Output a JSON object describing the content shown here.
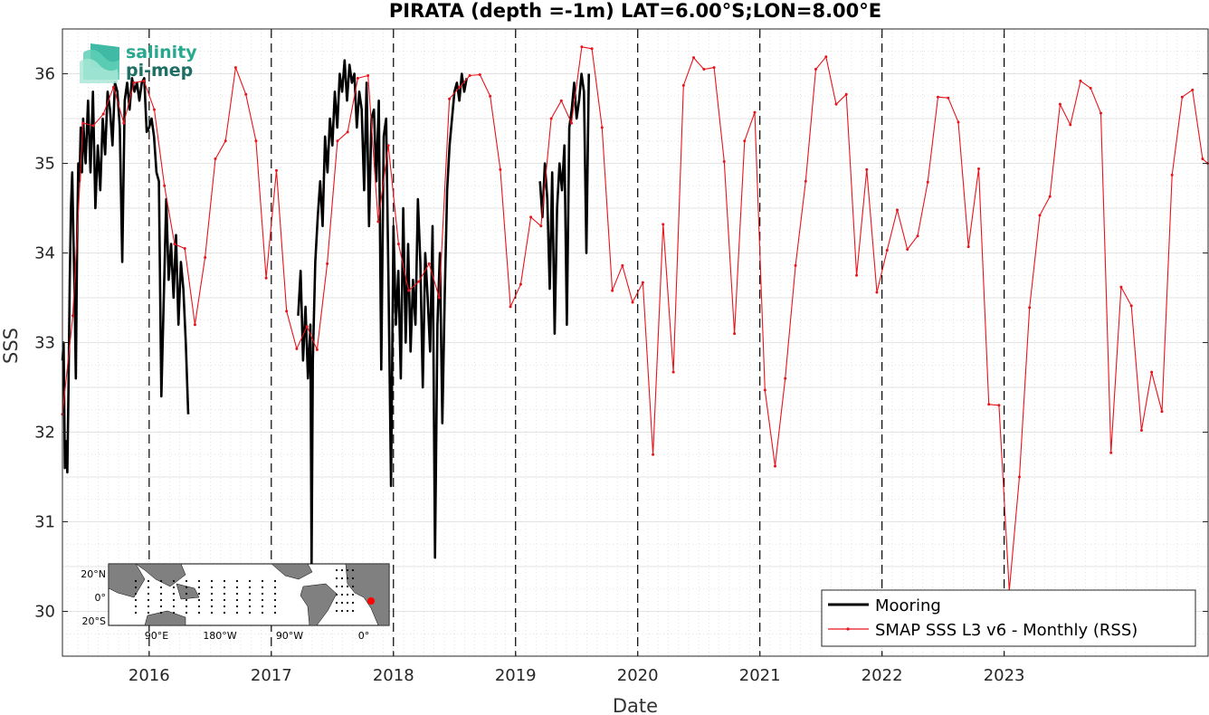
{
  "chart_data": {
    "type": "line",
    "title": "PIRATA (depth =-1m) LAT=6.00°S;LON=8.00°E",
    "xlabel": "Date",
    "ylabel": "SSS",
    "xlim": [
      2015.29,
      2024.67
    ],
    "ylim": [
      29.5,
      36.5
    ],
    "y_ticks": [
      "30",
      "31",
      "32",
      "33",
      "34",
      "35",
      "36"
    ],
    "x_ticks": [
      {
        "label": "2016",
        "x": 2016.0
      },
      {
        "label": "2017",
        "x": 2017.0
      },
      {
        "label": "2018",
        "x": 2018.0
      },
      {
        "label": "2019",
        "x": 2019.0
      },
      {
        "label": "2020",
        "x": 2020.0
      },
      {
        "label": "2021",
        "x": 2021.0
      },
      {
        "label": "2022",
        "x": 2022.0
      },
      {
        "label": "2023",
        "x": 2023.0
      }
    ],
    "year_lines": [
      2016,
      2017,
      2018,
      2019,
      2020,
      2021,
      2022,
      2023
    ],
    "grid": true,
    "legend_position": "bottom-right",
    "series": [
      {
        "name": "Mooring",
        "color": "#000000",
        "x": [
          2015.29,
          2015.3,
          2015.31,
          2015.32,
          2015.33,
          2015.34,
          2015.35,
          2015.36,
          2015.37,
          2015.38,
          2015.39,
          2015.4,
          2015.41,
          2015.42,
          2015.43,
          2015.44,
          2015.45,
          2015.46,
          2015.47,
          2015.48,
          2015.5,
          2015.52,
          2015.54,
          2015.56,
          2015.58,
          2015.6,
          2015.62,
          2015.64,
          2015.66,
          2015.68,
          2015.7,
          2015.72,
          2015.74,
          2015.76,
          2015.78,
          2015.8,
          2015.82,
          2015.84,
          2015.86,
          2015.88,
          2015.9,
          2015.92,
          2015.94,
          2015.96,
          2015.98,
          2016.0,
          2016.02,
          2016.04,
          2016.06,
          2016.08,
          2016.1,
          2016.12,
          2016.14,
          2016.16,
          2016.18,
          2016.2,
          2016.22,
          2016.24,
          2016.26,
          2016.28,
          2016.3,
          2016.32,
          null,
          2017.22,
          2017.24,
          2017.26,
          2017.28,
          2017.3,
          2017.32,
          2017.33,
          2017.34,
          2017.36,
          2017.38,
          2017.4,
          2017.42,
          2017.44,
          2017.46,
          2017.48,
          2017.5,
          2017.52,
          2017.54,
          2017.56,
          2017.58,
          2017.6,
          2017.62,
          2017.64,
          2017.66,
          2017.68,
          2017.7,
          2017.72,
          2017.74,
          2017.76,
          2017.78,
          2017.8,
          2017.82,
          2017.84,
          2017.86,
          2017.88,
          2017.9,
          2017.92,
          2017.94,
          2017.96,
          2017.98,
          2018.0,
          2018.02,
          2018.04,
          2018.06,
          2018.08,
          2018.1,
          2018.12,
          2018.14,
          2018.16,
          2018.18,
          2018.2,
          2018.22,
          2018.24,
          2018.26,
          2018.28,
          2018.3,
          2018.32,
          2018.34,
          2018.36,
          2018.38,
          2018.4,
          2018.42,
          2018.44,
          2018.46,
          2018.48,
          2018.5,
          2018.52,
          2018.54,
          2018.56,
          2018.58,
          2018.6,
          null,
          2019.2,
          2019.22,
          2019.24,
          2019.26,
          2019.28,
          2019.3,
          2019.32,
          2019.34,
          2019.36,
          2019.38,
          2019.4,
          2019.42,
          2019.44,
          2019.46,
          2019.48,
          2019.5,
          2019.52,
          2019.54,
          2019.56,
          2019.58,
          2019.6
        ],
        "y": [
          32.8,
          33.0,
          31.6,
          31.9,
          31.55,
          32.5,
          33.7,
          34.5,
          34.9,
          34.2,
          33.5,
          32.6,
          34.1,
          35.0,
          34.8,
          35.4,
          34.9,
          35.5,
          35.2,
          35.0,
          35.7,
          34.9,
          35.8,
          34.5,
          35.2,
          34.7,
          35.5,
          35.1,
          35.8,
          35.6,
          35.2,
          35.9,
          35.8,
          35.4,
          33.9,
          35.7,
          35.9,
          35.6,
          35.95,
          35.8,
          35.9,
          35.7,
          35.9,
          35.95,
          35.35,
          35.4,
          35.5,
          35.3,
          34.9,
          34.8,
          32.4,
          33.5,
          34.6,
          33.7,
          34.1,
          33.5,
          34.2,
          33.2,
          33.9,
          33.6,
          33.0,
          32.2,
          null,
          33.3,
          33.8,
          32.8,
          33.4,
          32.6,
          33.2,
          30.5,
          32.8,
          33.9,
          34.4,
          34.8,
          34.3,
          35.3,
          34.9,
          35.5,
          35.2,
          35.8,
          35.4,
          36.0,
          35.8,
          36.15,
          35.7,
          36.1,
          35.9,
          36.0,
          35.4,
          35.8,
          35.6,
          34.7,
          35.9,
          34.3,
          35.5,
          35.6,
          34.8,
          35.7,
          32.7,
          35.3,
          35.5,
          33.6,
          31.4,
          34.3,
          33.2,
          33.8,
          32.6,
          34.5,
          33.0,
          34.1,
          32.9,
          33.7,
          33.2,
          34.6,
          33.9,
          32.5,
          34.0,
          33.5,
          32.9,
          34.3,
          30.6,
          33.2,
          34.0,
          32.1,
          33.5,
          34.7,
          35.2,
          35.5,
          35.8,
          35.9,
          35.7,
          36.0,
          35.8,
          35.95,
          null,
          34.8,
          34.4,
          35.0,
          34.6,
          33.6,
          34.9,
          33.1,
          34.5,
          35.0,
          34.7,
          35.2,
          33.2,
          35.4,
          35.6,
          35.9,
          35.5,
          35.7,
          36.0,
          35.8,
          34.0,
          36.0
        ]
      },
      {
        "name": "SMAP SSS L3 v6 - Monthly (RSS)",
        "color": "#e8141c",
        "x": [
          2015.29,
          2015.375,
          2015.458,
          2015.542,
          2015.625,
          2015.708,
          2015.792,
          2015.875,
          2015.958,
          2016.042,
          2016.125,
          2016.208,
          2016.292,
          2016.375,
          2016.458,
          2016.542,
          2016.625,
          2016.708,
          2016.792,
          2016.875,
          2016.958,
          2017.042,
          2017.125,
          2017.208,
          2017.292,
          2017.375,
          2017.458,
          2017.542,
          2017.625,
          2017.708,
          2017.792,
          2017.875,
          2017.958,
          2018.042,
          2018.125,
          2018.208,
          2018.292,
          2018.375,
          2018.458,
          2018.542,
          2018.625,
          2018.708,
          2018.792,
          2018.875,
          2018.958,
          2019.042,
          2019.125,
          2019.208,
          2019.292,
          2019.375,
          2019.458,
          2019.542,
          2019.625,
          2019.708,
          2019.792,
          2019.875,
          2019.958,
          2020.042,
          2020.125,
          2020.208,
          2020.292,
          2020.375,
          2020.458,
          2020.542,
          2020.625,
          2020.708,
          2020.792,
          2020.875,
          2020.958,
          2021.042,
          2021.125,
          2021.208,
          2021.292,
          2021.375,
          2021.458,
          2021.542,
          2021.625,
          2021.708,
          2021.792,
          2021.875,
          2021.958,
          2022.042,
          2022.125,
          2022.208,
          2022.292,
          2022.375,
          2022.458,
          2022.542,
          2022.625,
          2022.708,
          2022.792,
          2022.875,
          2022.958,
          2023.042,
          2023.125,
          2023.208,
          2023.292,
          2023.375,
          2023.458,
          2023.542,
          2023.625,
          2023.708,
          2023.792,
          2023.875,
          2023.958,
          2024.042,
          2024.125,
          2024.208,
          2024.292,
          2024.375,
          2024.458,
          2024.542,
          2024.625,
          2024.667
        ],
        "y": [
          32.2,
          33.3,
          35.45,
          35.42,
          35.55,
          35.85,
          35.45,
          35.9,
          35.92,
          35.6,
          34.75,
          34.1,
          34.05,
          33.2,
          33.95,
          35.05,
          35.25,
          36.07,
          35.77,
          35.25,
          33.72,
          34.92,
          33.35,
          32.93,
          33.18,
          32.92,
          33.88,
          35.25,
          35.35,
          35.95,
          35.98,
          34.35,
          35.2,
          34.1,
          33.58,
          33.68,
          33.88,
          33.5,
          35.72,
          35.85,
          35.98,
          35.99,
          35.75,
          34.93,
          33.4,
          33.65,
          34.4,
          34.3,
          35.5,
          35.7,
          35.45,
          36.3,
          36.28,
          35.4,
          33.58,
          33.86,
          33.45,
          33.67,
          31.75,
          34.32,
          32.67,
          35.87,
          36.18,
          36.05,
          36.07,
          35.02,
          33.1,
          35.25,
          35.57,
          32.47,
          31.62,
          32.6,
          33.86,
          34.8,
          36.05,
          36.19,
          35.66,
          35.77,
          33.75,
          34.93,
          33.56,
          34.03,
          34.48,
          34.04,
          34.19,
          34.79,
          35.74,
          35.73,
          35.46,
          34.07,
          34.94,
          32.31,
          32.3,
          30.23,
          31.5,
          33.39,
          34.42,
          34.63,
          35.66,
          35.43,
          35.92,
          35.84,
          35.56,
          31.77,
          33.62,
          33.41,
          32.02,
          32.67,
          32.23,
          34.87,
          35.74,
          35.82,
          35.05,
          35.0
        ]
      }
    ]
  },
  "logo": {
    "line1": "salinity",
    "line2": "pi-mep"
  },
  "inset_map": {
    "y_labels": [
      "20°N",
      "0°",
      "20°S"
    ],
    "x_labels": [
      "90°E",
      "180°W",
      "90°W",
      "0°"
    ],
    "marker_color": "#ff0000"
  }
}
